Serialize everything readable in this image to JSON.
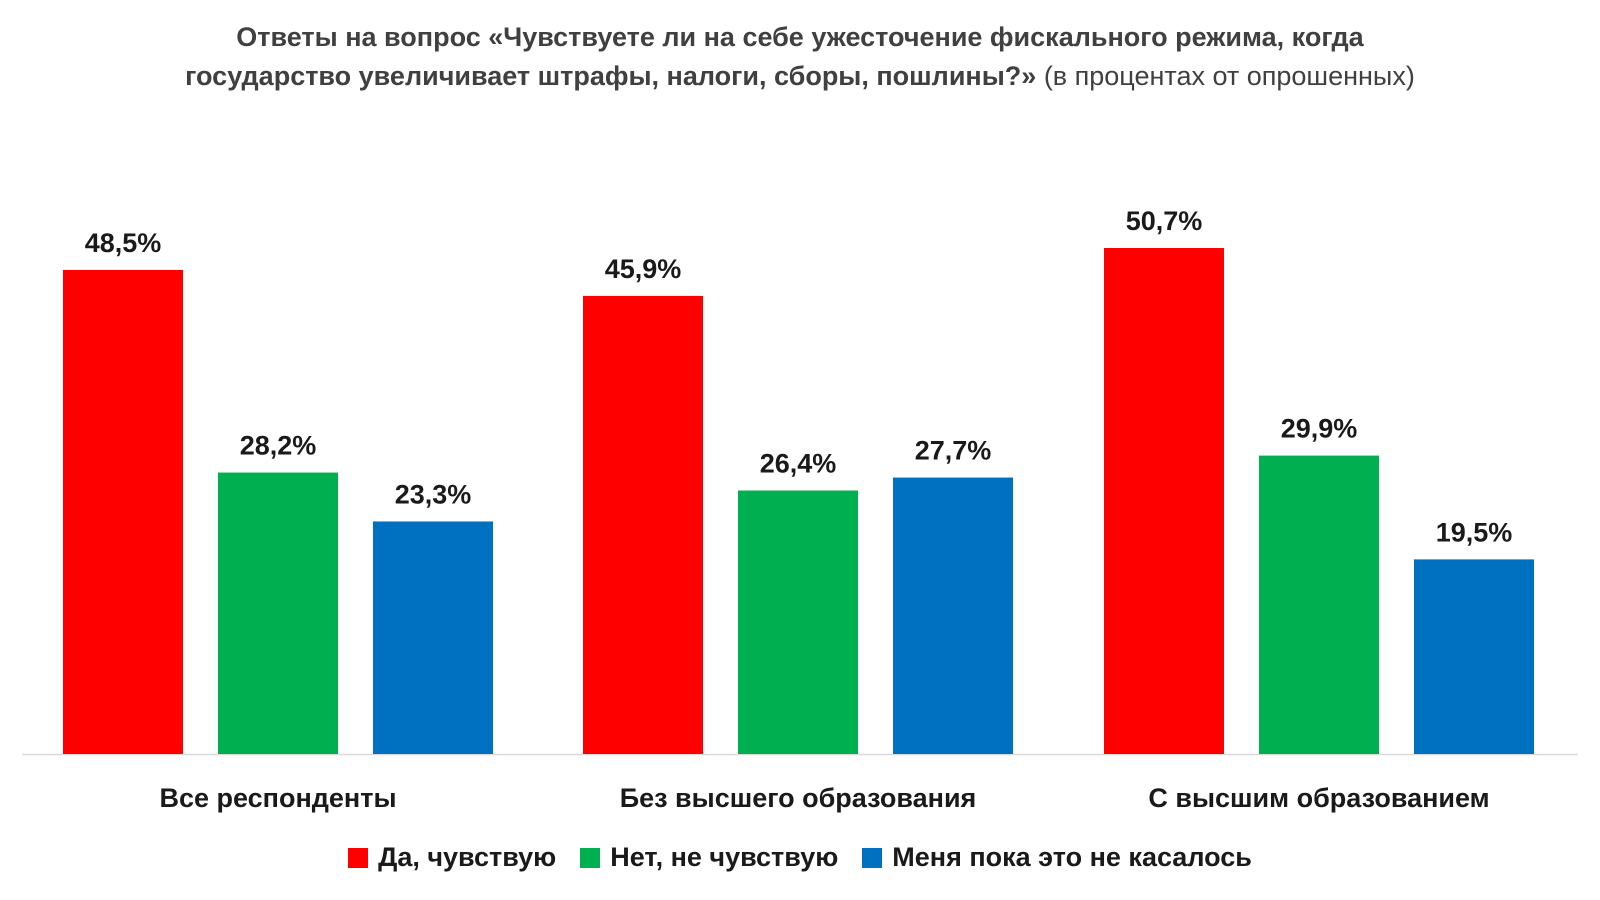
{
  "chart_data": {
    "type": "bar",
    "title_bold": "Ответы на вопрос «Чувствуете ли на себе ужесточение фискального режима, когда государство увеличивает штрафы, налоги, сборы, пошлины?»",
    "title_normal": " (в процентах от опрошенных)",
    "categories": [
      "Все респонденты",
      "Без высшего образования",
      "С высшим образованием"
    ],
    "series": [
      {
        "name": "Да, чувствую",
        "color": "#ff0000",
        "values": [
          48.5,
          45.9,
          50.7
        ],
        "labels": [
          "48,5%",
          "45,9%",
          "50,7%"
        ]
      },
      {
        "name": "Нет, не чувствую",
        "color": "#00b050",
        "values": [
          28.2,
          26.4,
          29.9
        ],
        "labels": [
          "28,2%",
          "26,4%",
          "29,9%"
        ]
      },
      {
        "name": "Меня пока это не касалось",
        "color": "#0070c0",
        "values": [
          23.3,
          27.7,
          19.5
        ],
        "labels": [
          "23,3%",
          "27,7%",
          "19,5%"
        ]
      }
    ],
    "ylim": [
      0,
      50.7
    ],
    "grid": false,
    "legend_position": "bottom"
  }
}
